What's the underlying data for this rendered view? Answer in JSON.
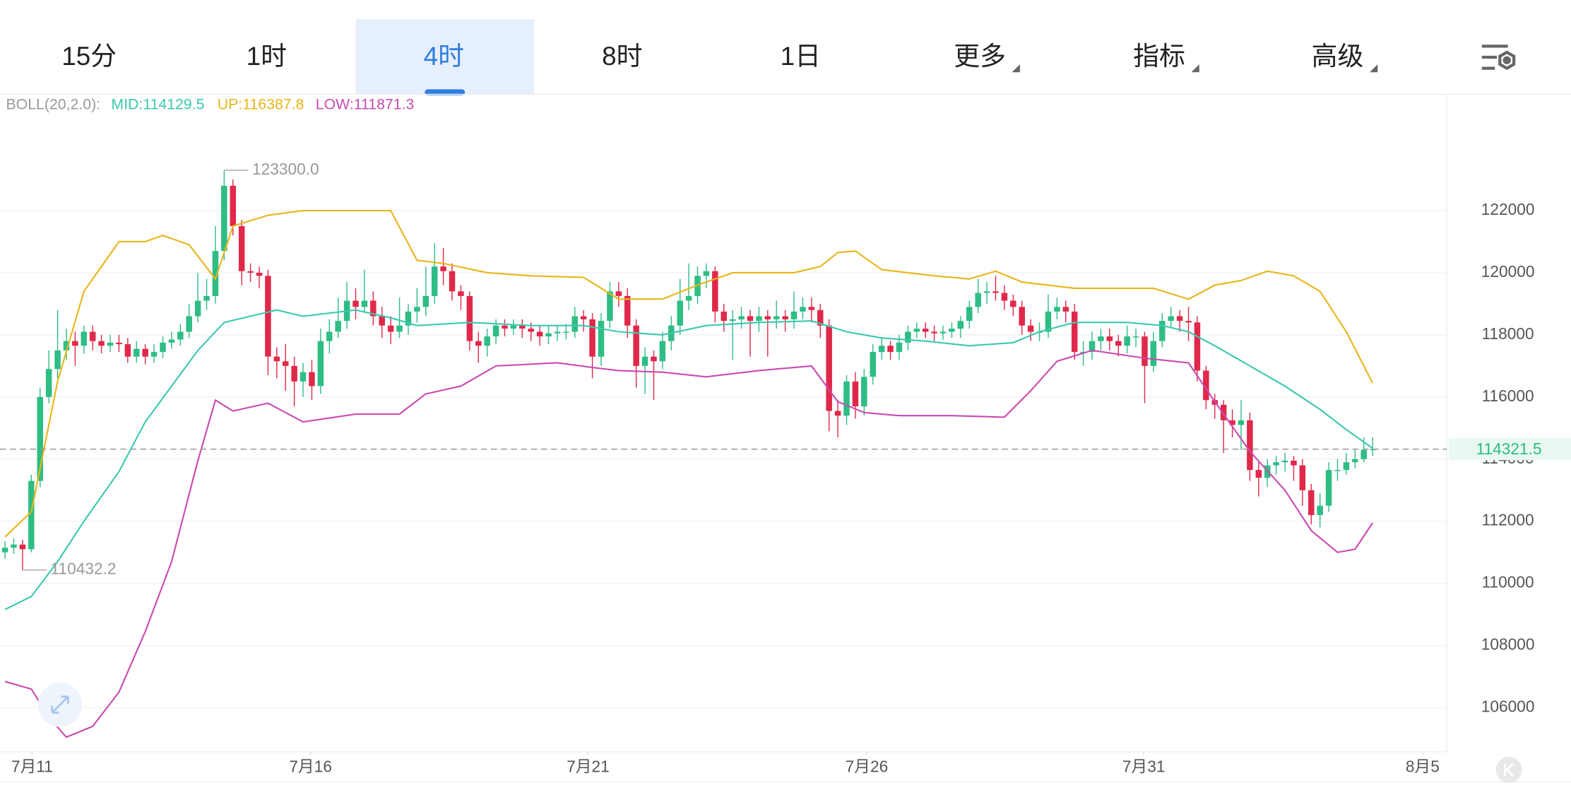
{
  "tabs": [
    "15分",
    "1时",
    "4时",
    "8时",
    "1日",
    "更多",
    "指标",
    "高级"
  ],
  "indicator": {
    "label": "BOLL(20,2.0):",
    "items": [
      "MID:114129.5",
      "UP:116387.8",
      "LOW:111871.3"
    ]
  },
  "chart_data": {
    "type": "candlestick",
    "up_color": "#2ebd85",
    "down_color": "#e0294a",
    "grid": true,
    "ylim": [
      104580,
      125710
    ],
    "yticks": [
      106000,
      108000,
      110000,
      112000,
      114000,
      116000,
      118000,
      120000,
      122000
    ],
    "xlim": [
      -0.571,
      164.46
    ],
    "xticks": [
      {
        "value": 3.086,
        "label": "7月11"
      },
      {
        "value": 34.86,
        "label": "7月16"
      },
      {
        "value": 66.51,
        "label": "7月21"
      },
      {
        "value": 98.29,
        "label": "7月26"
      },
      {
        "value": 129.9,
        "label": "7月31"
      },
      {
        "value": 161.7,
        "label": "8月5"
      }
    ],
    "open": [
      111000,
      111150,
      111250,
      111100,
      113300,
      116000,
      116900,
      117500,
      117800,
      117650,
      118100,
      117800,
      117650,
      117750,
      117700,
      117300,
      117550,
      117300,
      117450,
      117750,
      117850,
      118100,
      118600,
      119100,
      119250,
      120700,
      122800,
      121500,
      120050,
      120000,
      119900,
      117300,
      117150,
      117000,
      116500,
      116800,
      116350,
      117800,
      118100,
      118450,
      119100,
      118900,
      119100,
      118600,
      118300,
      118100,
      118300,
      118750,
      118900,
      119250,
      120200,
      120050,
      119400,
      119250,
      117800,
      117650,
      117950,
      118300,
      118200,
      118300,
      118200,
      118100,
      117950,
      118050,
      118100,
      118100,
      118600,
      118500,
      117300,
      118450,
      119400,
      119250,
      118300,
      117000,
      117300,
      117150,
      117800,
      118300,
      119100,
      119250,
      119900,
      120050,
      118750,
      118450,
      118500,
      118600,
      118450,
      118600,
      118500,
      118600,
      118500,
      118750,
      118900,
      118800,
      118300,
      115550,
      115400,
      116500,
      115700,
      116650,
      117450,
      117650,
      117450,
      117750,
      118100,
      118200,
      118100,
      118050,
      118100,
      118200,
      118450,
      118900,
      119350,
      119400,
      119350,
      119100,
      118900,
      118300,
      118100,
      118100,
      118750,
      118900,
      118750,
      117450,
      117450,
      117800,
      117950,
      117800,
      117650,
      117950,
      117950,
      117000,
      117800,
      118450,
      118600,
      118450,
      118400,
      116850,
      115900,
      115750,
      115250,
      115100,
      115250,
      113650,
      113400,
      113800,
      113900,
      113950,
      113800,
      113000,
      112200,
      112500,
      113650,
      113650,
      113900,
      114000,
      114300
    ],
    "high": [
      111350,
      111450,
      111400,
      113500,
      116300,
      117500,
      118800,
      118200,
      118100,
      118300,
      118300,
      118000,
      118000,
      118000,
      117900,
      117800,
      117700,
      117700,
      117950,
      118100,
      118350,
      119000,
      120000,
      119800,
      121500,
      123300,
      123000,
      121700,
      120300,
      120200,
      120100,
      117600,
      117700,
      117300,
      117100,
      117200,
      118200,
      118500,
      119200,
      119700,
      119500,
      120100,
      119400,
      118900,
      118600,
      119200,
      119000,
      119500,
      120200,
      120950,
      120800,
      120300,
      119600,
      119400,
      118100,
      118200,
      118500,
      118500,
      118500,
      118500,
      118400,
      118300,
      118300,
      118300,
      118350,
      118900,
      118800,
      118700,
      118700,
      119700,
      119700,
      119500,
      118500,
      117600,
      117500,
      118100,
      118600,
      119800,
      120300,
      120200,
      120300,
      120200,
      119000,
      118800,
      118900,
      118800,
      118900,
      118800,
      119100,
      118800,
      119400,
      119200,
      119200,
      119000,
      118500,
      115900,
      116700,
      116800,
      116900,
      117700,
      117900,
      117800,
      118000,
      118300,
      118400,
      118400,
      118300,
      118300,
      118400,
      118600,
      119100,
      119800,
      119700,
      119900,
      119600,
      119300,
      119100,
      118500,
      118400,
      119300,
      119200,
      119100,
      119000,
      117800,
      118100,
      118200,
      118200,
      118000,
      118300,
      118200,
      118100,
      118100,
      118700,
      118900,
      118800,
      118900,
      118600,
      117000,
      116100,
      115900,
      115600,
      115900,
      115500,
      113900,
      114000,
      114100,
      114200,
      114100,
      114000,
      113200,
      112900,
      113900,
      114000,
      114200,
      114300,
      114700,
      114700
    ],
    "low": [
      110800,
      110950,
      110432,
      111000,
      113100,
      115800,
      116600,
      117200,
      117000,
      117400,
      117500,
      117400,
      117450,
      117450,
      117100,
      117100,
      117050,
      117100,
      117250,
      117550,
      117650,
      117900,
      118400,
      118800,
      119000,
      120400,
      121200,
      119600,
      119700,
      119500,
      116700,
      116600,
      116200,
      115700,
      116000,
      115900,
      116100,
      117400,
      117900,
      118200,
      118500,
      118700,
      118300,
      117900,
      117700,
      117900,
      118000,
      118400,
      118600,
      119000,
      119600,
      119100,
      118800,
      117500,
      117100,
      117300,
      117700,
      117950,
      118000,
      117900,
      117800,
      117650,
      117700,
      117800,
      117850,
      117900,
      118100,
      116600,
      117000,
      118200,
      118900,
      117900,
      116300,
      116100,
      115900,
      116900,
      117500,
      118000,
      118800,
      119000,
      119500,
      118400,
      118100,
      117200,
      118200,
      117300,
      118100,
      117300,
      118200,
      118100,
      118200,
      118500,
      118400,
      117900,
      114900,
      114700,
      115100,
      115300,
      115400,
      116400,
      117200,
      117200,
      117200,
      117500,
      117900,
      117900,
      117800,
      117850,
      117900,
      117900,
      118200,
      118700,
      119000,
      119100,
      118800,
      118600,
      118000,
      117800,
      117800,
      117900,
      118500,
      118400,
      117200,
      117000,
      117200,
      117500,
      117500,
      117300,
      117400,
      117600,
      115800,
      116800,
      117600,
      118200,
      118100,
      117800,
      116500,
      115600,
      115300,
      114200,
      114700,
      114300,
      113300,
      112800,
      113100,
      113500,
      113600,
      113300,
      112500,
      111900,
      111800,
      112300,
      113300,
      113500,
      113700,
      113900,
      114100
    ],
    "close": [
      111150,
      111250,
      111100,
      113300,
      116000,
      116900,
      117500,
      117800,
      117650,
      118100,
      117800,
      117650,
      117750,
      117700,
      117300,
      117550,
      117300,
      117450,
      117750,
      117850,
      118100,
      118600,
      119100,
      119250,
      120700,
      122800,
      121500,
      120050,
      120000,
      119900,
      117300,
      117150,
      117000,
      116500,
      116800,
      116350,
      117800,
      118100,
      118450,
      119100,
      118900,
      119100,
      118600,
      118300,
      118100,
      118300,
      118750,
      118900,
      119250,
      120200,
      120050,
      119400,
      119250,
      117800,
      117650,
      117950,
      118300,
      118200,
      118300,
      118200,
      118100,
      117950,
      118050,
      118100,
      118100,
      118600,
      118500,
      117300,
      118450,
      119400,
      119250,
      118300,
      117000,
      117300,
      117150,
      117800,
      118300,
      119100,
      119250,
      119900,
      120050,
      118750,
      118450,
      118500,
      118600,
      118450,
      118600,
      118500,
      118600,
      118500,
      118750,
      118900,
      118800,
      118300,
      115550,
      115400,
      116500,
      115700,
      116650,
      117450,
      117650,
      117450,
      117750,
      118100,
      118200,
      118100,
      118050,
      118100,
      118200,
      118450,
      118900,
      119350,
      119400,
      119350,
      119100,
      118900,
      118300,
      118100,
      118100,
      118750,
      118900,
      118750,
      117450,
      117450,
      117800,
      117950,
      117800,
      117650,
      117950,
      117950,
      117000,
      117800,
      118450,
      118600,
      118450,
      118400,
      116850,
      115900,
      115750,
      115250,
      115100,
      115250,
      113650,
      113400,
      113800,
      113900,
      113950,
      113800,
      113000,
      112200,
      112500,
      113650,
      113650,
      113900,
      114000,
      114300,
      114321.5
    ],
    "bands": [
      {
        "color": "#3cc8b0",
        "x": [
          0,
          3,
          6,
          9,
          13,
          16,
          19,
          22,
          25,
          28,
          31,
          34,
          40,
          44,
          47,
          53,
          60,
          66,
          70,
          75,
          80,
          86,
          92,
          96,
          100,
          105,
          110,
          115,
          118,
          122,
          128,
          132,
          135,
          138,
          142,
          146,
          150,
          153,
          156
        ],
        "values": [
          109160,
          109580,
          110700,
          112000,
          113600,
          115200,
          116350,
          117500,
          118400,
          118600,
          118800,
          118600,
          118800,
          118550,
          118300,
          118400,
          118300,
          118300,
          118100,
          118000,
          118300,
          118400,
          118450,
          118100,
          117900,
          117800,
          117650,
          117750,
          118100,
          118400,
          118400,
          118300,
          118100,
          117650,
          117000,
          116350,
          115600,
          114950,
          114350
        ]
      },
      {
        "color": "#e8b51a",
        "x": [
          0,
          3,
          6,
          9,
          13,
          16,
          18,
          21,
          24,
          26,
          30,
          34,
          40,
          44,
          47,
          50,
          55,
          60,
          66,
          70,
          75,
          79,
          83,
          90,
          93,
          95,
          97,
          100,
          106,
          110,
          113,
          116,
          122,
          128,
          131,
          135,
          138,
          141,
          144,
          147,
          150,
          153,
          156
        ],
        "values": [
          111500,
          112300,
          116500,
          119400,
          121000,
          121000,
          121200,
          120900,
          119800,
          121500,
          121850,
          122000,
          122000,
          122000,
          120400,
          120300,
          120000,
          119900,
          119850,
          119150,
          119150,
          119600,
          120000,
          120000,
          120200,
          120650,
          120700,
          120100,
          119900,
          119800,
          120050,
          119700,
          119500,
          119500,
          119500,
          119150,
          119600,
          119750,
          120050,
          119900,
          119400,
          118100,
          116450
        ]
      },
      {
        "color": "#c94bb0",
        "x": [
          0,
          3,
          5,
          7,
          10,
          13,
          16,
          19,
          22,
          24,
          26,
          30,
          34,
          40,
          45,
          48,
          52,
          56,
          63,
          67,
          70,
          75,
          80,
          86,
          92,
          95,
          98,
          102,
          108,
          114,
          117,
          120,
          124,
          130,
          135,
          138,
          142,
          146,
          149,
          152,
          154,
          156
        ],
        "values": [
          106840,
          106600,
          105700,
          105050,
          105400,
          106500,
          108450,
          110700,
          113950,
          115900,
          115550,
          115800,
          115200,
          115450,
          115450,
          116100,
          116350,
          117000,
          117100,
          116950,
          116850,
          116800,
          116650,
          116850,
          117000,
          115850,
          115500,
          115400,
          115400,
          115350,
          116200,
          117150,
          117500,
          117250,
          117100,
          115850,
          114250,
          113000,
          111700,
          111000,
          111100,
          111950
        ]
      }
    ],
    "max_label": {
      "value": 123300,
      "label": "123300.0"
    },
    "min_label": {
      "value": 110432,
      "label": "110432.2"
    },
    "last_price": 114321.5
  }
}
